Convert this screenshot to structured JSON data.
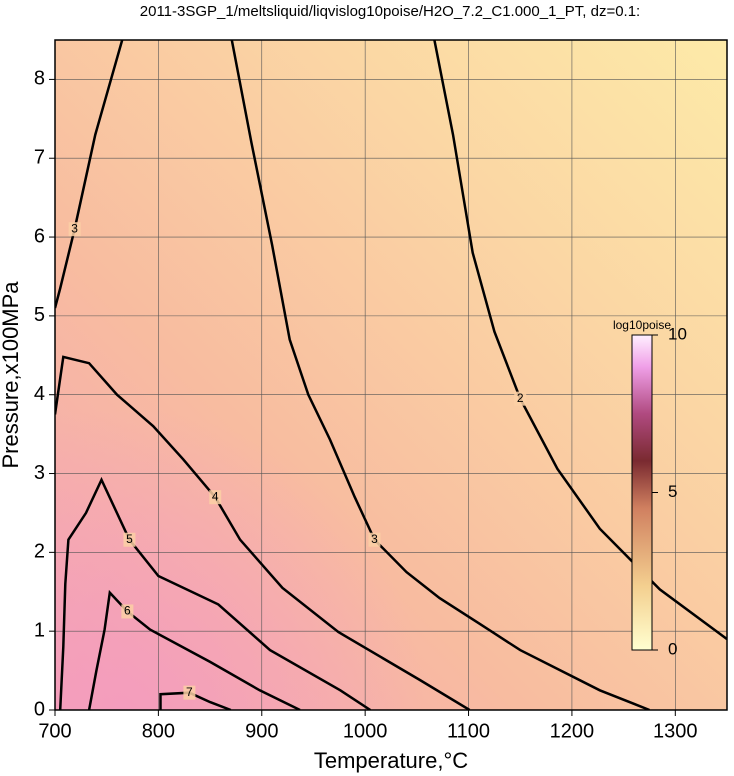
{
  "chart_data": {
    "type": "contour",
    "title": "2011-3SGP_1/meltsliquid/liqvislog10poise/H2O_7.2_C1.000_1_PT, dz=0.1:",
    "x_label": "Temperature,°C",
    "y_label": "Pressure,x100MPa",
    "xlim": [
      700,
      1350
    ],
    "xticks": [
      700,
      800,
      900,
      1000,
      1100,
      1200,
      1300
    ],
    "ylim": [
      0,
      8.5
    ],
    "yticks": [
      0,
      1,
      2,
      3,
      4,
      5,
      6,
      7,
      8
    ],
    "grid": true,
    "color": "#000000",
    "series": [
      {
        "name": "2",
        "x": [
          1067,
          1085,
          1104,
          1125,
          1150,
          1186,
          1227,
          1285,
          1350
        ],
        "y": [
          8.5,
          7.3,
          5.8,
          4.8,
          3.95,
          3.06,
          2.3,
          1.53,
          0.9
        ]
      },
      {
        "name": "3",
        "x": [
          765,
          739,
          719,
          705,
          700
        ],
        "y": [
          8.5,
          7.3,
          6.1,
          5.35,
          5.1
        ]
      },
      {
        "name": "3",
        "x": [
          871,
          890,
          910,
          927,
          945,
          966,
          990,
          1009,
          1040,
          1072,
          1110,
          1150,
          1227,
          1275
        ],
        "y": [
          8.5,
          7.2,
          5.9,
          4.7,
          4.0,
          3.43,
          2.7,
          2.16,
          1.75,
          1.42,
          1.1,
          0.76,
          0.25,
          0
        ]
      },
      {
        "name": "4",
        "x": [
          700,
          708,
          733,
          760,
          795,
          824,
          855,
          879,
          920,
          974,
          1053,
          1101
        ],
        "y": [
          3.75,
          4.48,
          4.4,
          4.0,
          3.6,
          3.18,
          2.7,
          2.16,
          1.55,
          0.99,
          0.38,
          0
        ]
      },
      {
        "name": "5",
        "x": [
          705,
          708,
          710,
          713,
          730,
          745,
          772,
          800,
          858,
          908,
          976,
          1005
        ],
        "y": [
          0,
          0.8,
          1.6,
          2.16,
          2.5,
          2.92,
          2.16,
          1.7,
          1.34,
          0.76,
          0.25,
          0
        ]
      },
      {
        "name": "6",
        "x": [
          733,
          740,
          748,
          753,
          770,
          792,
          850,
          898,
          937
        ],
        "y": [
          0,
          0.5,
          1.02,
          1.49,
          1.25,
          1.02,
          0.61,
          0.25,
          0
        ]
      },
      {
        "name": "7",
        "x": [
          802,
          802,
          830,
          850,
          870
        ],
        "y": [
          0,
          0.2,
          0.22,
          0.1,
          0
        ]
      }
    ],
    "colorbar": {
      "title": "log10poise",
      "lim": [
        0,
        10
      ],
      "ticks": [
        0,
        5,
        10
      ]
    }
  }
}
